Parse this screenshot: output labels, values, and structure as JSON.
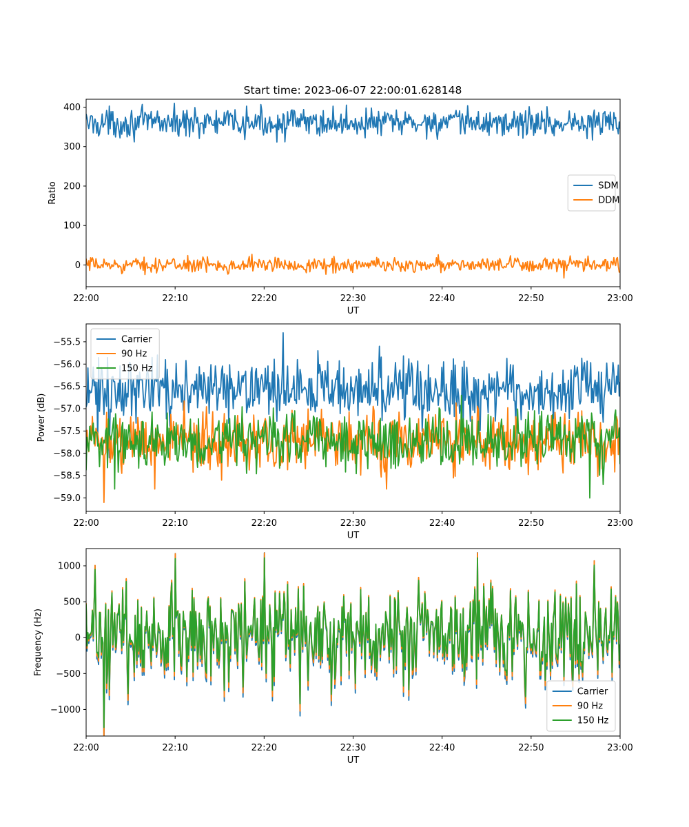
{
  "figure": {
    "title": "Start time: 2023-06-07 22:00:01.628148"
  },
  "chart_data": [
    {
      "type": "line",
      "xlabel": "UT",
      "ylabel": "Ratio",
      "x_ticks": [
        "22:00",
        "22:10",
        "22:20",
        "22:30",
        "22:40",
        "22:50",
        "23:00"
      ],
      "xlim_minutes": [
        0,
        60
      ],
      "ylim": [
        -55,
        420
      ],
      "y_ticks": [
        0,
        100,
        200,
        300,
        400
      ],
      "legend_position": "center-right",
      "series": [
        {
          "name": "SDM",
          "color": "#1f77b4",
          "mean": 360,
          "amplitude": 18,
          "spikes": [
            [
              12.2,
              399
            ],
            [
              49.8,
              401
            ],
            [
              17.8,
              318
            ],
            [
              56.3,
              320
            ],
            [
              8.0,
              390
            ]
          ]
        },
        {
          "name": "DDM",
          "color": "#ff7f0e",
          "mean": 0,
          "amplitude": 9,
          "spikes": [
            [
              18.6,
              27
            ],
            [
              53.7,
              -33
            ],
            [
              39.6,
              26
            ],
            [
              59.9,
              -18
            ],
            [
              11.4,
              24
            ]
          ]
        }
      ]
    },
    {
      "type": "line",
      "xlabel": "UT",
      "ylabel": "Power (dB)",
      "x_ticks": [
        "22:00",
        "22:10",
        "22:20",
        "22:30",
        "22:40",
        "22:50",
        "23:00"
      ],
      "xlim_minutes": [
        0,
        60
      ],
      "ylim": [
        -59.3,
        -55.1
      ],
      "y_ticks": [
        "−59.0",
        "−58.5",
        "−58.0",
        "−57.5",
        "−57.0",
        "−56.5",
        "−56.0",
        "−55.5"
      ],
      "y_tick_values": [
        -59.0,
        -58.5,
        -58.0,
        -57.5,
        -57.0,
        -56.5,
        -56.0,
        -55.5
      ],
      "legend_position": "top-left",
      "series": [
        {
          "name": "Carrier",
          "color": "#1f77b4",
          "mean": -56.6,
          "amplitude": 0.32,
          "spikes": [
            [
              22.1,
              -55.3
            ],
            [
              1.3,
              -57.8
            ],
            [
              26.0,
              -55.7
            ],
            [
              33.0,
              -55.6
            ],
            [
              2.6,
              -58.1
            ]
          ]
        },
        {
          "name": "90 Hz",
          "color": "#ff7f0e",
          "mean": -57.7,
          "amplitude": 0.33,
          "spikes": [
            [
              2.0,
              -59.1
            ],
            [
              33.8,
              -58.8
            ],
            [
              7.7,
              -58.8
            ],
            [
              15.2,
              -58.6
            ]
          ]
        },
        {
          "name": "150 Hz",
          "color": "#2ca02c",
          "mean": -57.7,
          "amplitude": 0.32,
          "spikes": [
            [
              56.6,
              -59.0
            ],
            [
              3.2,
              -58.8
            ],
            [
              58.1,
              -58.7
            ],
            [
              42.2,
              -56.7
            ]
          ]
        }
      ]
    },
    {
      "type": "line",
      "xlabel": "UT",
      "ylabel": "Frequency (Hz)",
      "x_ticks": [
        "22:00",
        "22:10",
        "22:20",
        "22:30",
        "22:40",
        "22:50",
        "23:00"
      ],
      "xlim_minutes": [
        0,
        60
      ],
      "ylim": [
        -1370,
        1240
      ],
      "y_ticks": [
        "−1000",
        "−500",
        "0",
        "500",
        "1000"
      ],
      "y_tick_values": [
        -1000,
        -500,
        0,
        500,
        1000
      ],
      "legend_position": "bottom-right",
      "series": [
        {
          "name": "Carrier",
          "color": "#1f77b4",
          "offset": -60
        },
        {
          "name": "90 Hz",
          "color": "#ff7f0e",
          "offset": -25
        },
        {
          "name": "150 Hz",
          "color": "#2ca02c",
          "offset": 0
        }
      ],
      "base_signal": {
        "mean": 50,
        "amplitude": 330,
        "spikes": [
          [
            2.0,
            -1250
          ],
          [
            10.0,
            1100
          ],
          [
            20.0,
            1110
          ],
          [
            44.0,
            1110
          ],
          [
            1.0,
            950
          ],
          [
            24.0,
            -920
          ]
        ]
      }
    }
  ]
}
